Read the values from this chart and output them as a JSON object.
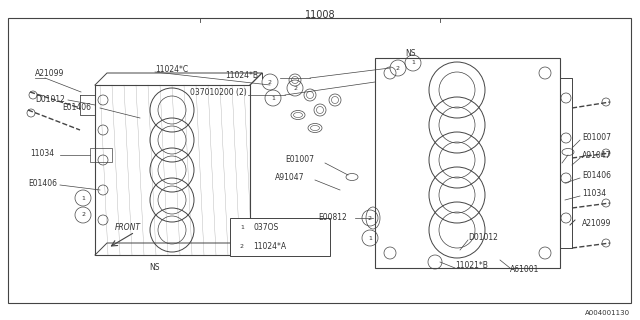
{
  "title": "11008",
  "bg_color": "#ffffff",
  "lc": "#444444",
  "tc": "#333333",
  "footer": "A004001130",
  "fs": 5.5,
  "legend_items": [
    {
      "num": "1",
      "label": "037OS"
    },
    {
      "num": "2",
      "label": "11024*A"
    }
  ]
}
